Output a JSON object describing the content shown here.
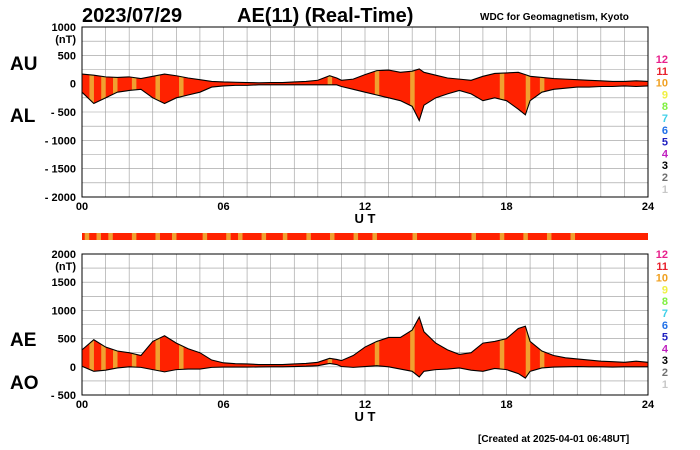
{
  "header": {
    "date": "2023/07/29",
    "title": "AE(11) (Real-Time)",
    "source": "WDC for Geomagnetism, Kyoto"
  },
  "footer": {
    "created": "[Created at 2025-04-01 06:48UT]"
  },
  "colors": {
    "fill": "#ff2200",
    "segment": "#f0a030",
    "grid": "#999999",
    "curve": "#000000"
  },
  "chart_data": [
    {
      "type": "area",
      "name": "top-panel",
      "series_labels": {
        "upper": "AU",
        "lower": "AL"
      },
      "unit": "(nT)",
      "xlabel": "U T",
      "xlim": [
        0,
        24
      ],
      "ylim": [
        -2000,
        1000
      ],
      "y_ticks": [
        "1000",
        "500",
        "0",
        "- 500",
        "- 1000",
        "- 1500",
        "- 2000"
      ],
      "y_tick_values": [
        1000,
        500,
        0,
        -500,
        -1000,
        -1500,
        -2000
      ],
      "x_ticks": [
        "00",
        "06",
        "12",
        "18",
        "24"
      ],
      "x_tick_values": [
        0,
        6,
        12,
        18,
        24
      ],
      "grid": true,
      "x": [
        0,
        0.5,
        1,
        1.5,
        2,
        2.5,
        3,
        3.5,
        4,
        4.5,
        5,
        5.5,
        6,
        6.5,
        7,
        7.5,
        8,
        8.5,
        9,
        9.5,
        10,
        10.5,
        10.8,
        11,
        11.5,
        12,
        12.5,
        13,
        13.5,
        14,
        14.3,
        14.5,
        15,
        15.5,
        16,
        16.5,
        17,
        17.5,
        18,
        18.5,
        18.8,
        19,
        19.5,
        20,
        20.5,
        21,
        21.5,
        22,
        22.5,
        23,
        23.5,
        24
      ],
      "series": [
        {
          "name": "AU",
          "values": [
            170,
            150,
            120,
            110,
            120,
            90,
            130,
            170,
            140,
            100,
            70,
            40,
            30,
            25,
            20,
            15,
            20,
            20,
            30,
            40,
            60,
            140,
            100,
            60,
            80,
            160,
            230,
            240,
            200,
            220,
            260,
            200,
            150,
            100,
            80,
            60,
            130,
            180,
            190,
            200,
            160,
            130,
            110,
            90,
            80,
            70,
            60,
            50,
            40,
            40,
            50,
            40
          ]
        },
        {
          "name": "AL",
          "values": [
            -150,
            -350,
            -250,
            -150,
            -120,
            -100,
            -250,
            -350,
            -250,
            -200,
            -150,
            -60,
            -40,
            -30,
            -30,
            -20,
            -20,
            -20,
            -20,
            -20,
            -20,
            -20,
            -20,
            -50,
            -100,
            -150,
            -200,
            -250,
            -300,
            -400,
            -650,
            -380,
            -250,
            -180,
            -120,
            -180,
            -300,
            -250,
            -300,
            -450,
            -550,
            -300,
            -150,
            -100,
            -80,
            -60,
            -60,
            -50,
            -50,
            -40,
            -50,
            -40
          ]
        }
      ],
      "highlight_bands": [
        0.4,
        0.9,
        1.4,
        2.2,
        3.2,
        4.2,
        10.5,
        12.5,
        14.0,
        17.8,
        18.9,
        19.5
      ]
    },
    {
      "type": "area",
      "name": "bottom-panel",
      "series_labels": {
        "upper": "AE",
        "lower": "AO"
      },
      "unit": "(nT)",
      "xlabel": "U T",
      "xlim": [
        0,
        24
      ],
      "ylim": [
        -500,
        2000
      ],
      "y_ticks": [
        "2000",
        "1500",
        "1000",
        "500",
        "0",
        "- 500"
      ],
      "y_tick_values": [
        2000,
        1500,
        1000,
        500,
        0,
        -500
      ],
      "x_ticks": [
        "00",
        "06",
        "12",
        "18",
        "24"
      ],
      "x_tick_values": [
        0,
        6,
        12,
        18,
        24
      ],
      "grid": true,
      "x": [
        0,
        0.5,
        1,
        1.5,
        2,
        2.5,
        3,
        3.5,
        4,
        4.5,
        5,
        5.5,
        6,
        6.5,
        7,
        7.5,
        8,
        8.5,
        9,
        9.5,
        10,
        10.5,
        10.8,
        11,
        11.5,
        12,
        12.5,
        13,
        13.5,
        14,
        14.3,
        14.5,
        15,
        15.5,
        16,
        16.5,
        17,
        17.5,
        18,
        18.5,
        18.8,
        19,
        19.5,
        20,
        20.5,
        21,
        21.5,
        22,
        22.5,
        23,
        23.5,
        24
      ],
      "series": [
        {
          "name": "AE",
          "values": [
            300,
            480,
            350,
            280,
            250,
            200,
            450,
            550,
            420,
            320,
            250,
            120,
            70,
            55,
            50,
            40,
            40,
            40,
            50,
            60,
            80,
            150,
            130,
            110,
            200,
            350,
            450,
            520,
            520,
            650,
            880,
            620,
            420,
            300,
            220,
            250,
            420,
            450,
            500,
            680,
            720,
            450,
            280,
            200,
            160,
            140,
            120,
            100,
            90,
            80,
            100,
            80
          ]
        },
        {
          "name": "AO",
          "values": [
            10,
            -80,
            -60,
            -20,
            0,
            -10,
            -50,
            -90,
            -50,
            -40,
            -40,
            -10,
            -5,
            -5,
            -5,
            -3,
            0,
            0,
            5,
            10,
            20,
            60,
            40,
            5,
            -10,
            5,
            20,
            0,
            -40,
            -80,
            -180,
            -80,
            -50,
            -40,
            -20,
            -60,
            -80,
            -30,
            -50,
            -120,
            -200,
            -80,
            -20,
            -5,
            0,
            5,
            0,
            0,
            -5,
            0,
            0,
            0
          ]
        }
      ],
      "highlight_bands": [
        0.4,
        0.9,
        1.4,
        2.2,
        3.2,
        4.2,
        10.5,
        12.5,
        14.0,
        17.8,
        18.9,
        19.5
      ]
    }
  ],
  "strip": {
    "bands": [
      0.2,
      0.7,
      1.2,
      2.2,
      3.2,
      3.9,
      5.2,
      6.2,
      6.7,
      7.7,
      8.6,
      9.6,
      10.6,
      11.6,
      12.4,
      14.1,
      16.6,
      17.8,
      18.8,
      19.8,
      20.8
    ]
  },
  "station_key": [
    {
      "label": "12",
      "color": "#e8208c"
    },
    {
      "label": "11",
      "color": "#e8202c"
    },
    {
      "label": "10",
      "color": "#f0a020"
    },
    {
      "label": "9",
      "color": "#f0f040"
    },
    {
      "label": "8",
      "color": "#80f040"
    },
    {
      "label": "7",
      "color": "#40d0e8"
    },
    {
      "label": "6",
      "color": "#2070e8"
    },
    {
      "label": "5",
      "color": "#2020c0"
    },
    {
      "label": "4",
      "color": "#c020c0"
    },
    {
      "label": "3",
      "color": "#000000"
    },
    {
      "label": "2",
      "color": "#707070"
    },
    {
      "label": "1",
      "color": "#c8c8c8"
    }
  ]
}
